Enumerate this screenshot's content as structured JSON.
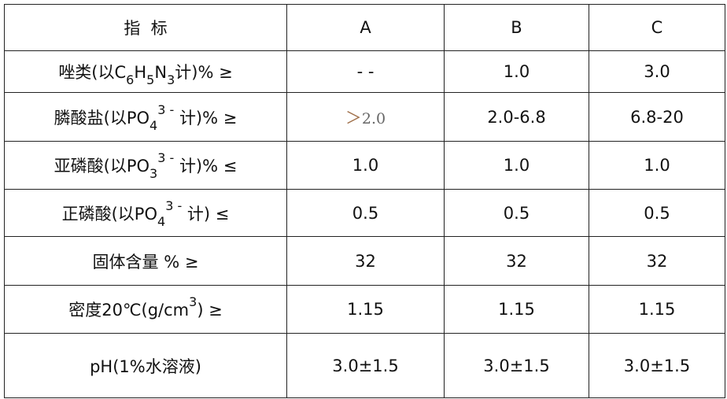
{
  "header": {
    "indicator": "指  标",
    "a": "A",
    "b": "B",
    "c": "C"
  },
  "rows": [
    {
      "label": [
        "唑类(以C",
        "6",
        "H",
        "5",
        "N",
        "3",
        "计)% ≥"
      ],
      "a": "- -",
      "b": "1.0",
      "c": "3.0"
    },
    {
      "label": [
        "膦酸盐(以PO",
        "4",
        "3 -",
        "计)% ≥"
      ],
      "a_prefix": "＞",
      "a": "2.0",
      "b": "2.0-6.8",
      "c": "6.8-20"
    },
    {
      "label": [
        "亚磷酸(以PO",
        "3",
        "3 -",
        "计)% ≤"
      ],
      "a": "1.0",
      "b": "1.0",
      "c": "1.0"
    },
    {
      "label": [
        "正磷酸(以PO",
        "4",
        "3 -",
        "计) ≤"
      ],
      "a": "0.5",
      "b": "0.5",
      "c": "0.5"
    },
    {
      "label": [
        "固体含量 % ≥"
      ],
      "a": "32",
      "b": "32",
      "c": "32"
    },
    {
      "label": [
        "密度20℃(g/cm",
        "3",
        ") ≥"
      ],
      "a": "1.15",
      "b": "1.15",
      "c": "1.15"
    },
    {
      "label": [
        "pH(1%水溶液)"
      ],
      "a": "3.0±1.5",
      "b": "3.0±1.5",
      "c": "3.0±1.5"
    }
  ],
  "colors": {
    "border": "#222222",
    "prefix": "#a0704a"
  }
}
